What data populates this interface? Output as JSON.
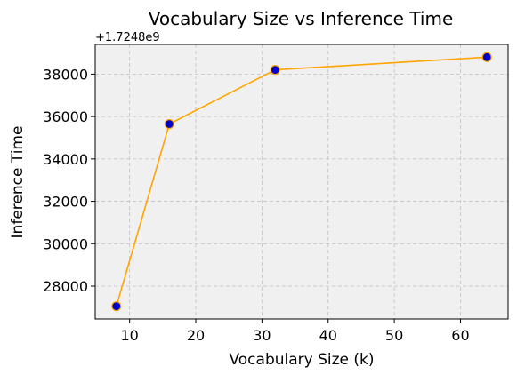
{
  "chart_data": {
    "type": "line",
    "title": "Vocabulary Size vs Inference Time",
    "xlabel": "Vocabulary Size (k)",
    "ylabel": "Inference Time",
    "y_offset_label": "+1.7248e9",
    "xlim": [
      4.8,
      67.2
    ],
    "ylim": [
      26450,
      39400
    ],
    "x_ticks": [
      10,
      20,
      30,
      40,
      50,
      60
    ],
    "y_ticks": [
      28000,
      30000,
      32000,
      34000,
      36000,
      38000
    ],
    "grid": true,
    "series": [
      {
        "x": [
          8,
          16,
          32,
          64
        ],
        "y": [
          27050,
          35650,
          38200,
          38800
        ],
        "line_color": "#ffa500",
        "marker_face": "#0000cc",
        "marker_edge": "#ffa500"
      }
    ],
    "colors": {
      "plot_background": "#f0f0f0",
      "grid": "#c0c0c0"
    }
  }
}
